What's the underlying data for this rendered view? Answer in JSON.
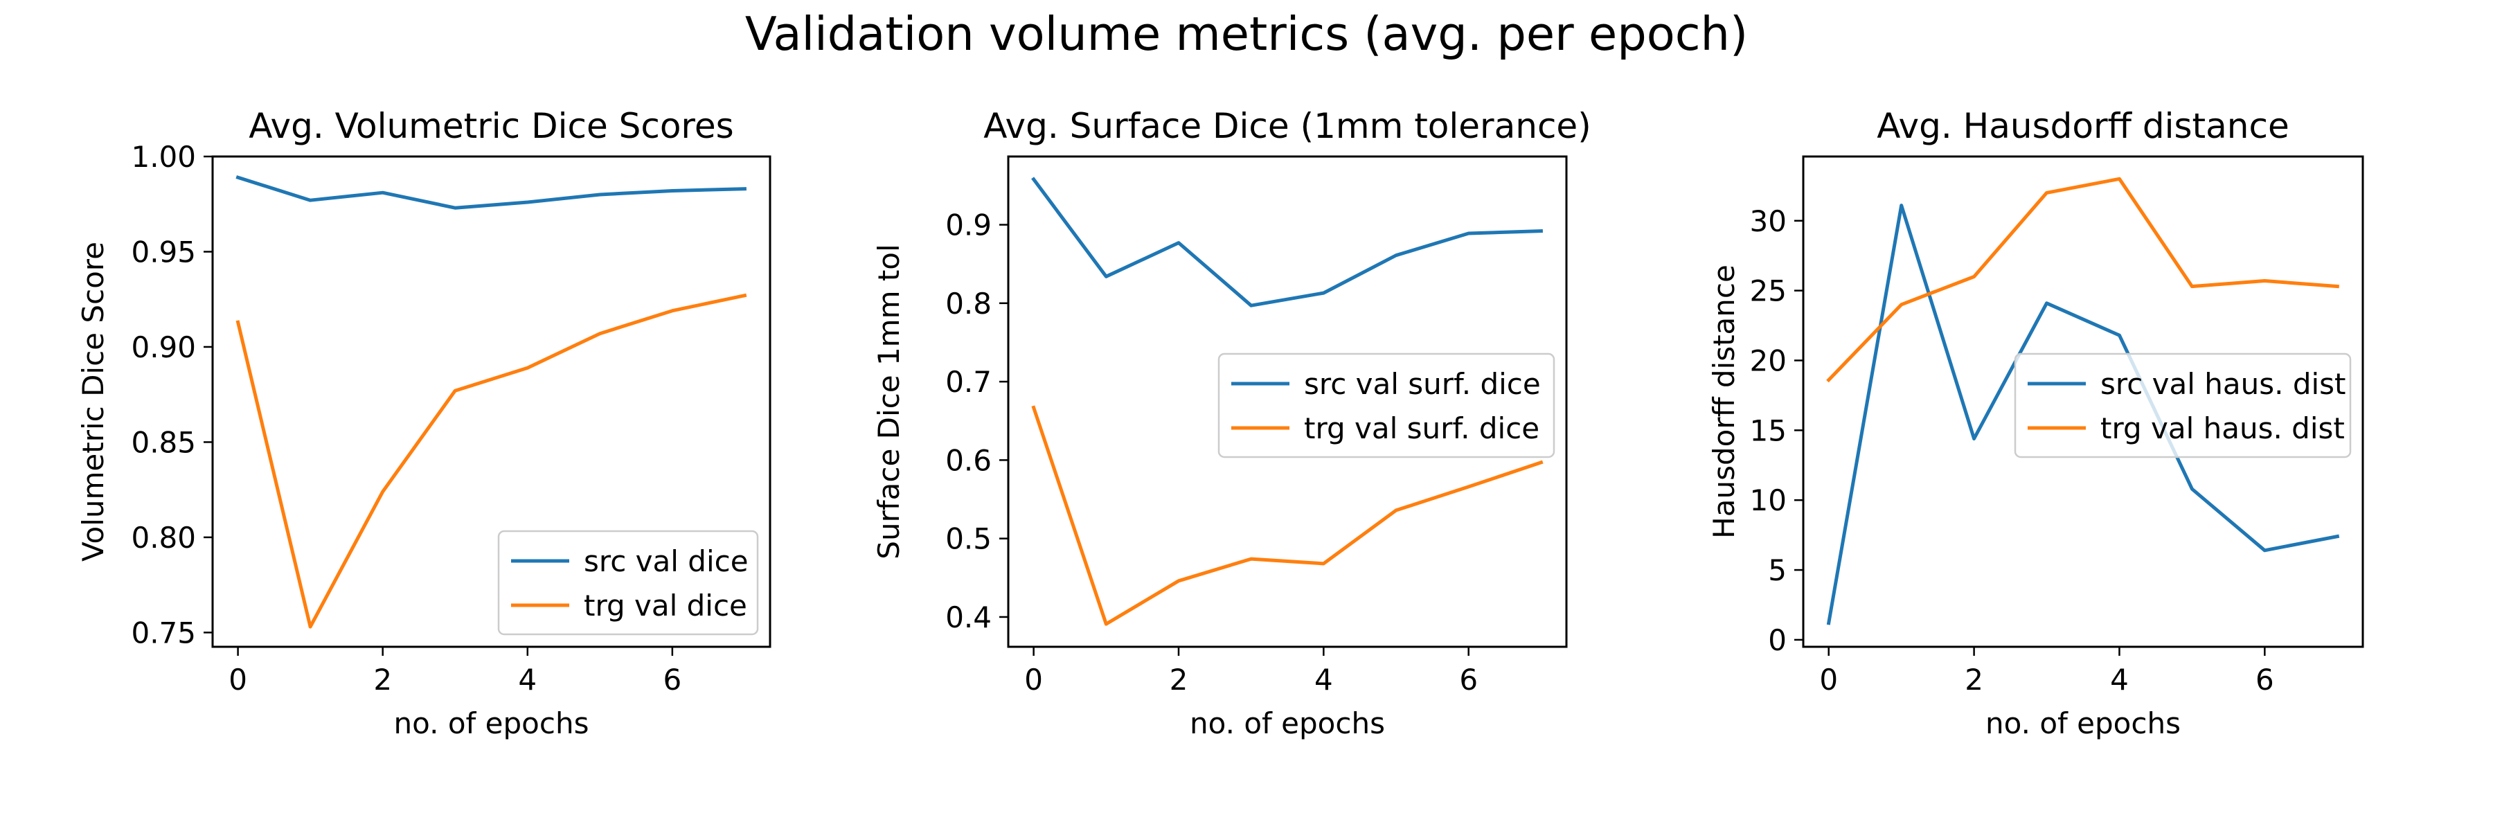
{
  "figure_title": "Validation volume metrics (avg. per epoch)",
  "colors": {
    "src": "#1f77b4",
    "trg": "#ff7f0e"
  },
  "chart_data": [
    {
      "type": "line",
      "title": "Avg. Volumetric Dice Scores",
      "xlabel": "no. of epochs",
      "ylabel": "Volumetric Dice Score",
      "xlim": [
        -0.35,
        7.35
      ],
      "ylim": [
        0.7425,
        1.0
      ],
      "xticks": [
        0,
        2,
        4,
        6
      ],
      "xtick_labels": [
        "0",
        "2",
        "4",
        "6"
      ],
      "yticks": [
        0.75,
        0.8,
        0.85,
        0.9,
        0.95,
        1.0
      ],
      "ytick_labels": [
        "0.75",
        "0.80",
        "0.85",
        "0.90",
        "0.95",
        "1.00"
      ],
      "legend_position": "lower-right",
      "x": [
        0,
        1,
        2,
        3,
        4,
        5,
        6,
        7
      ],
      "series": [
        {
          "name": "src val dice",
          "color": "#1f77b4",
          "values": [
            0.989,
            0.977,
            0.981,
            0.973,
            0.976,
            0.98,
            0.982,
            0.983
          ]
        },
        {
          "name": "trg val dice",
          "color": "#ff7f0e",
          "values": [
            0.913,
            0.753,
            0.824,
            0.877,
            0.889,
            0.907,
            0.919,
            0.927
          ]
        }
      ]
    },
    {
      "type": "line",
      "title": "Avg. Surface Dice (1mm tolerance)",
      "xlabel": "no. of epochs",
      "ylabel": "Surface Dice 1mm tol",
      "xlim": [
        -0.35,
        7.35
      ],
      "ylim": [
        0.362,
        0.987
      ],
      "xticks": [
        0,
        2,
        4,
        6
      ],
      "xtick_labels": [
        "0",
        "2",
        "4",
        "6"
      ],
      "yticks": [
        0.4,
        0.5,
        0.6,
        0.7,
        0.8,
        0.9
      ],
      "ytick_labels": [
        "0.4",
        "0.5",
        "0.6",
        "0.7",
        "0.8",
        "0.9"
      ],
      "legend_position": "center-right",
      "x": [
        0,
        1,
        2,
        3,
        4,
        5,
        6,
        7
      ],
      "series": [
        {
          "name": "src val surf. dice",
          "color": "#1f77b4",
          "values": [
            0.958,
            0.834,
            0.877,
            0.797,
            0.813,
            0.861,
            0.889,
            0.892
          ]
        },
        {
          "name": "trg val surf. dice",
          "color": "#ff7f0e",
          "values": [
            0.667,
            0.391,
            0.446,
            0.474,
            0.468,
            0.536,
            0.566,
            0.597
          ]
        }
      ]
    },
    {
      "type": "line",
      "title": "Avg. Hausdorff distance",
      "xlabel": "no. of epochs",
      "ylabel": "Hausdorff distance",
      "xlim": [
        -0.35,
        7.35
      ],
      "ylim": [
        -0.5,
        34.6
      ],
      "xticks": [
        0,
        2,
        4,
        6
      ],
      "xtick_labels": [
        "0",
        "2",
        "4",
        "6"
      ],
      "yticks": [
        0,
        5,
        10,
        15,
        20,
        25,
        30
      ],
      "ytick_labels": [
        "0",
        "5",
        "10",
        "15",
        "20",
        "25",
        "30"
      ],
      "legend_position": "center-right",
      "x": [
        0,
        1,
        2,
        3,
        4,
        5,
        6,
        7
      ],
      "series": [
        {
          "name": "src val haus. dist",
          "color": "#1f77b4",
          "values": [
            1.2,
            31.1,
            14.4,
            24.1,
            21.8,
            10.8,
            6.4,
            7.4
          ]
        },
        {
          "name": "trg val haus. dist",
          "color": "#ff7f0e",
          "values": [
            18.6,
            24.0,
            26.0,
            32.0,
            33.0,
            25.3,
            25.7,
            25.3
          ]
        }
      ]
    }
  ]
}
